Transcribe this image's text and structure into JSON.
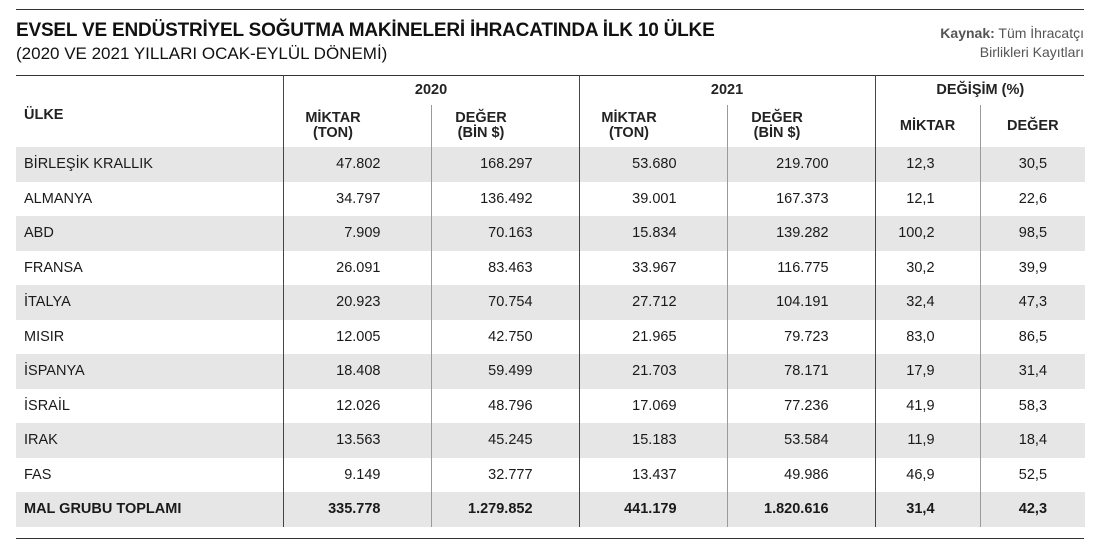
{
  "title": "EVSEL VE ENDÜSTRİYEL SOĞUTMA MAKİNELERİ İHRACATINDA İLK 10 ÜLKE",
  "subtitle": "(2020 VE 2021 YILLARI OCAK-EYLÜL DÖNEMİ)",
  "source": {
    "label": "Kaynak:",
    "line1": "Tüm İhracatçı",
    "line2": "Birlikleri Kayıtları"
  },
  "table": {
    "country_header": "ÜLKE",
    "groups": [
      "2020",
      "2021",
      "DEĞİŞİM (%)"
    ],
    "sub_headers": {
      "miktar_top": "MİKTAR",
      "miktar_bottom": "(TON)",
      "deger_top": "DEĞER",
      "deger_bottom": "(BİN $)",
      "change_miktar": "MİKTAR",
      "change_deger": "DEĞER"
    },
    "rows": [
      {
        "country": "BİRLEŞİK KRALLIK",
        "m2020": "47.802",
        "d2020": "168.297",
        "m2021": "53.680",
        "d2021": "219.700",
        "cm": "12,3",
        "cd": "30,5"
      },
      {
        "country": "ALMANYA",
        "m2020": "34.797",
        "d2020": "136.492",
        "m2021": "39.001",
        "d2021": "167.373",
        "cm": "12,1",
        "cd": "22,6"
      },
      {
        "country": "ABD",
        "m2020": "7.909",
        "d2020": "70.163",
        "m2021": "15.834",
        "d2021": "139.282",
        "cm": "100,2",
        "cd": "98,5"
      },
      {
        "country": "FRANSA",
        "m2020": "26.091",
        "d2020": "83.463",
        "m2021": "33.967",
        "d2021": "116.775",
        "cm": "30,2",
        "cd": "39,9"
      },
      {
        "country": "İTALYA",
        "m2020": "20.923",
        "d2020": "70.754",
        "m2021": "27.712",
        "d2021": "104.191",
        "cm": "32,4",
        "cd": "47,3"
      },
      {
        "country": "MISIR",
        "m2020": "12.005",
        "d2020": "42.750",
        "m2021": "21.965",
        "d2021": "79.723",
        "cm": "83,0",
        "cd": "86,5"
      },
      {
        "country": "İSPANYA",
        "m2020": "18.408",
        "d2020": "59.499",
        "m2021": "21.703",
        "d2021": "78.171",
        "cm": "17,9",
        "cd": "31,4"
      },
      {
        "country": "İSRAİL",
        "m2020": "12.026",
        "d2020": "48.796",
        "m2021": "17.069",
        "d2021": "77.236",
        "cm": "41,9",
        "cd": "58,3"
      },
      {
        "country": "IRAK",
        "m2020": "13.563",
        "d2020": "45.245",
        "m2021": "15.183",
        "d2021": "53.584",
        "cm": "11,9",
        "cd": "18,4"
      },
      {
        "country": "FAS",
        "m2020": "9.149",
        "d2020": "32.777",
        "m2021": "13.437",
        "d2021": "49.986",
        "cm": "46,9",
        "cd": "52,5"
      }
    ],
    "total": {
      "country": "MAL GRUBU TOPLAMI",
      "m2020": "335.778",
      "d2020": "1.279.852",
      "m2021": "441.179",
      "d2021": "1.820.616",
      "cm": "31,4",
      "cd": "42,3"
    }
  }
}
